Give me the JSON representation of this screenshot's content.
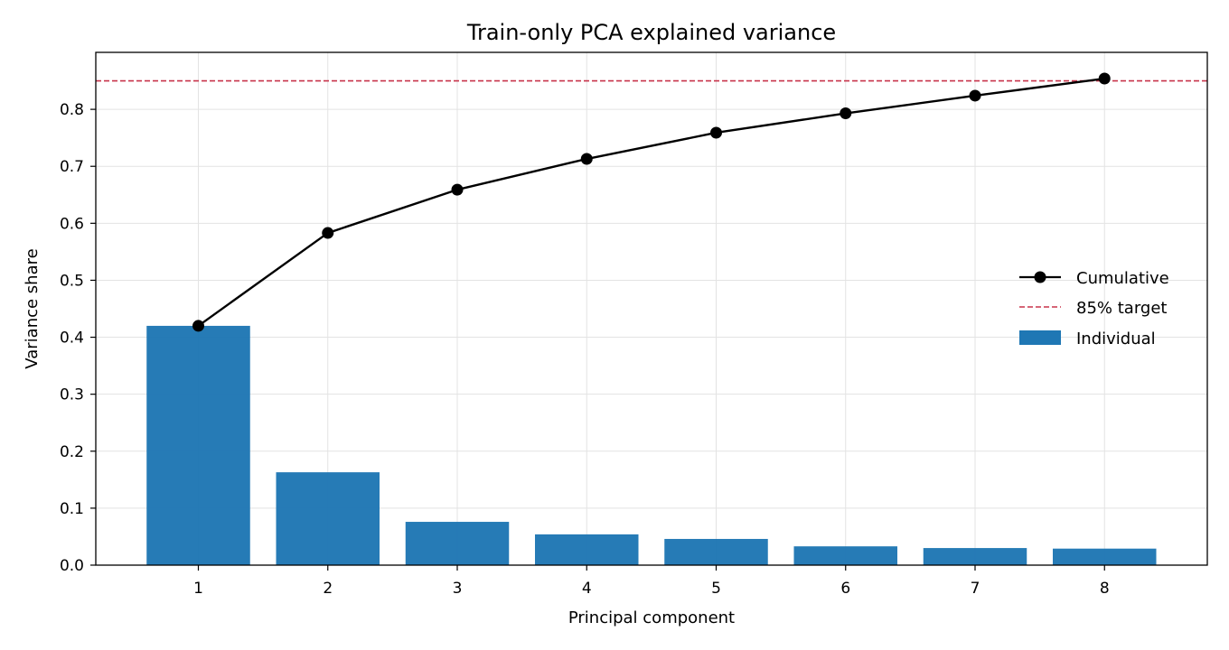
{
  "chart_data": {
    "type": "bar",
    "title": "Train-only PCA explained variance",
    "xlabel": "Principal component",
    "ylabel": "Variance share",
    "categories": [
      "1",
      "2",
      "3",
      "4",
      "5",
      "6",
      "7",
      "8"
    ],
    "series": [
      {
        "name": "Individual",
        "type": "bar",
        "color": "#1f77b4",
        "values": [
          0.42,
          0.163,
          0.076,
          0.054,
          0.046,
          0.033,
          0.03,
          0.029
        ]
      },
      {
        "name": "Cumulative",
        "type": "line",
        "color": "#000000",
        "marker": "circle",
        "values": [
          0.42,
          0.583,
          0.659,
          0.713,
          0.759,
          0.793,
          0.824,
          0.854
        ]
      }
    ],
    "reference_lines": [
      {
        "name": "85% target",
        "y": 0.85,
        "color": "#c8334a",
        "style": "dashed"
      }
    ],
    "yticks": [
      "0.0",
      "0.1",
      "0.2",
      "0.3",
      "0.4",
      "0.5",
      "0.6",
      "0.7",
      "0.8"
    ],
    "ylim": [
      0,
      0.9
    ],
    "grid": true,
    "legend": {
      "placement": "center-right",
      "entries": [
        "Cumulative",
        "85% target",
        "Individual"
      ]
    }
  }
}
